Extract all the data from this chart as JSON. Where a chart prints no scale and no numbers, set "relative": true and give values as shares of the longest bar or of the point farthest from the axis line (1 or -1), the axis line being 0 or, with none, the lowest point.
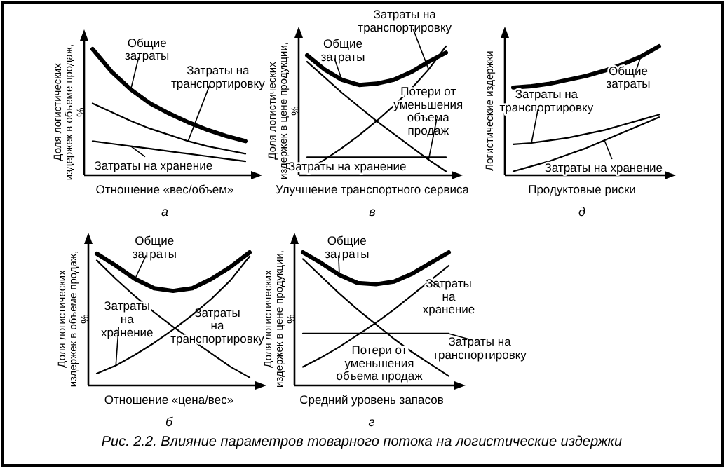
{
  "chart_data": [
    {
      "type": "line",
      "relative": true,
      "subtitle": "а",
      "xlabel": "Отношение «вес/объем»",
      "ylabel": "Доля логистических издержек в объеме продаж, %",
      "categories": [
        null,
        null,
        null,
        null,
        null,
        null,
        null,
        null,
        null
      ],
      "series": [
        {
          "name": "Общие затраты",
          "color": "#000000",
          "values": [
            1.0,
            0.82,
            0.68,
            0.57,
            0.49,
            0.42,
            0.36,
            0.31,
            0.27
          ]
        },
        {
          "name": "Затраты на транспортировку",
          "color": "#000000",
          "values": [
            0.57,
            0.5,
            0.43,
            0.37,
            0.32,
            0.27,
            0.23,
            0.2,
            0.17
          ]
        },
        {
          "name": "Затраты на хранение",
          "color": "#000000",
          "values": [
            0.27,
            0.25,
            0.23,
            0.21,
            0.19,
            0.17,
            0.15,
            0.13,
            0.11
          ]
        }
      ]
    },
    {
      "type": "line",
      "relative": true,
      "subtitle": "в",
      "xlabel": "Улучшение транспортного сервиса",
      "ylabel": "Доля логистических издержек в цене продукции, %",
      "categories": [
        null,
        null,
        null,
        null,
        null,
        null,
        null,
        null,
        null
      ],
      "series": [
        {
          "name": "Общие затраты",
          "color": "#000000",
          "values": [
            0.93,
            0.82,
            0.74,
            0.7,
            0.71,
            0.74,
            0.8,
            0.88,
            0.95
          ]
        },
        {
          "name": "Затраты на транспортировку",
          "color": "#000000",
          "values": [
            0.04,
            0.12,
            0.21,
            0.31,
            0.42,
            0.54,
            0.67,
            0.82,
            1.0
          ]
        },
        {
          "name": "Потери от уменьшения объема продаж",
          "color": "#000000",
          "values": [
            0.88,
            0.76,
            0.64,
            0.53,
            0.42,
            0.32,
            0.22,
            0.12,
            0.03
          ]
        },
        {
          "name": "Затраты на хранение",
          "color": "#000000",
          "values": [
            0.14,
            0.14,
            0.14,
            0.14,
            0.14,
            0.14,
            0.14,
            0.14,
            0.14
          ]
        }
      ]
    },
    {
      "type": "line",
      "relative": true,
      "subtitle": "д",
      "xlabel": "Продуктовые риски",
      "ylabel": "Логистические издержки",
      "categories": [
        null,
        null,
        null,
        null,
        null,
        null,
        null,
        null,
        null
      ],
      "series": [
        {
          "name": "Общие затраты",
          "color": "#000000",
          "values": [
            0.68,
            0.69,
            0.71,
            0.74,
            0.77,
            0.81,
            0.86,
            0.92,
            1.0
          ]
        },
        {
          "name": "Затраты на транспортировку",
          "color": "#000000",
          "values": [
            0.24,
            0.25,
            0.27,
            0.29,
            0.32,
            0.35,
            0.39,
            0.43,
            0.47
          ]
        },
        {
          "name": "Затраты на хранение",
          "color": "#000000",
          "values": [
            0.03,
            0.07,
            0.11,
            0.16,
            0.21,
            0.27,
            0.33,
            0.39,
            0.45
          ]
        }
      ]
    },
    {
      "type": "line",
      "relative": true,
      "subtitle": "б",
      "xlabel": "Отношение «цена/вес»",
      "ylabel": "Доля логистических издержек в объеме продаж, %",
      "categories": [
        null,
        null,
        null,
        null,
        null,
        null,
        null,
        null,
        null
      ],
      "series": [
        {
          "name": "Общие затраты",
          "color": "#000000",
          "values": [
            0.99,
            0.9,
            0.8,
            0.73,
            0.71,
            0.73,
            0.8,
            0.89,
            1.0
          ]
        },
        {
          "name": "Затраты на транспортировку",
          "color": "#000000",
          "values": [
            0.94,
            0.8,
            0.67,
            0.55,
            0.44,
            0.34,
            0.24,
            0.14,
            0.06
          ]
        },
        {
          "name": "Затраты на хранение",
          "color": "#000000",
          "values": [
            0.09,
            0.15,
            0.23,
            0.32,
            0.42,
            0.53,
            0.65,
            0.79,
            0.97
          ]
        }
      ]
    },
    {
      "type": "line",
      "relative": true,
      "subtitle": "г",
      "xlabel": "Средний уровень запасов",
      "ylabel": "Доля логистических издержек в цене продукции, %",
      "categories": [
        null,
        null,
        null,
        null,
        null,
        null,
        null,
        null,
        null
      ],
      "annotations": [
        "Рис. 2.2. Влияние параметров товарного потока на логистические издержки"
      ],
      "series": [
        {
          "name": "Общие затраты",
          "color": "#000000",
          "values": [
            1.0,
            0.92,
            0.83,
            0.77,
            0.76,
            0.78,
            0.84,
            0.92,
            1.0
          ]
        },
        {
          "name": "Затраты на хранение",
          "color": "#000000",
          "values": [
            0.14,
            0.21,
            0.29,
            0.38,
            0.47,
            0.57,
            0.68,
            0.79,
            0.9
          ]
        },
        {
          "name": "Затраты на транспортировку",
          "color": "#000000",
          "values": [
            0.39,
            0.39,
            0.39,
            0.39,
            0.39,
            0.39,
            0.39,
            0.39,
            0.39
          ]
        },
        {
          "name": "Потери от уменьшения объема продаж",
          "color": "#000000",
          "values": [
            0.95,
            0.82,
            0.69,
            0.57,
            0.46,
            0.35,
            0.25,
            0.16,
            0.07
          ]
        }
      ]
    }
  ]
}
